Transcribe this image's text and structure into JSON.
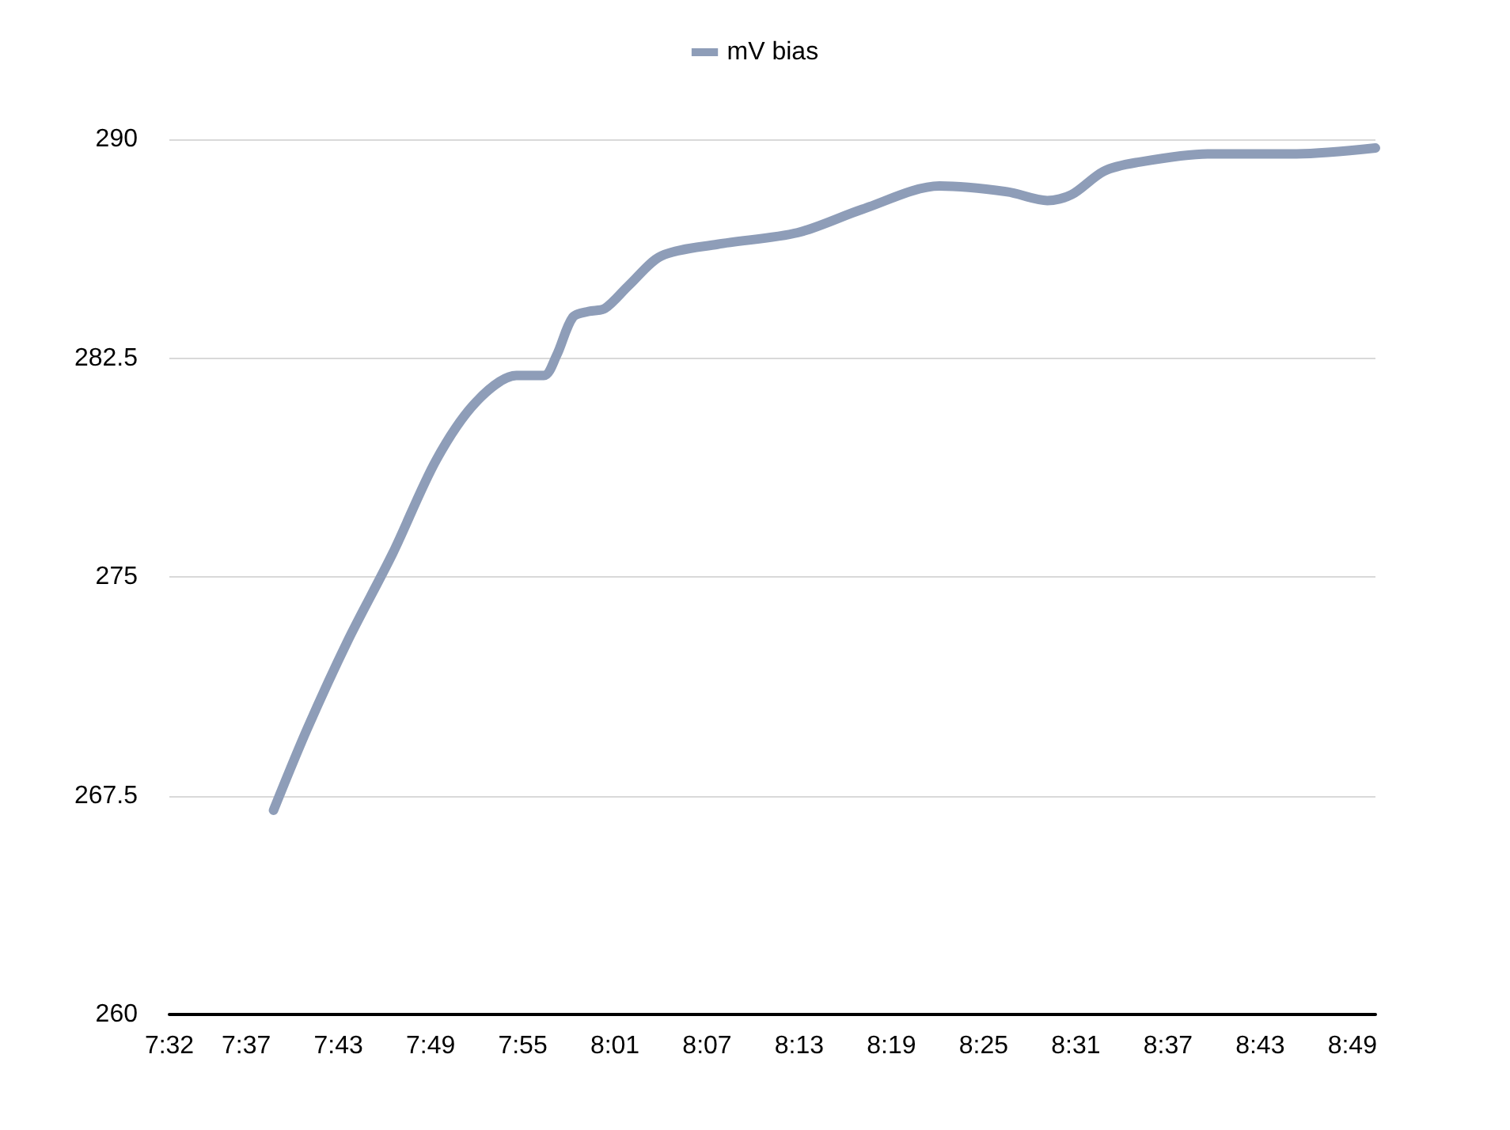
{
  "chart_data": {
    "type": "line",
    "legend": "top",
    "grid": "y",
    "marker": "none",
    "line_style": "solid",
    "x": [
      7.6463,
      7.683,
      7.7267,
      7.7755,
      7.8227,
      7.8662,
      7.9098,
      7.9395,
      7.9535,
      7.971,
      7.9883,
      8.0058,
      8.032,
      8.067,
      8.128,
      8.215,
      8.285,
      8.3688,
      8.4422,
      8.4858,
      8.512,
      8.5468,
      8.5818,
      8.6603,
      8.7563,
      8.8418
    ],
    "series": [
      {
        "name": "mV bias",
        "color": "#8e9db8",
        "values": [
          267.0,
          269.8,
          272.8,
          275.8,
          279.0,
          281.0,
          281.9,
          281.9,
          282.6,
          283.9,
          284.1,
          284.2,
          285.0,
          286.0,
          286.4,
          286.8,
          287.6,
          288.4,
          288.2,
          287.9,
          288.1,
          288.9,
          289.2,
          289.5,
          289.5,
          289.7
        ]
      }
    ],
    "xlim": [
      7.5333,
      8.8418
    ],
    "xticks": [
      {
        "value": 7.5333,
        "label": "7:32"
      },
      {
        "value": 7.6167,
        "label": "7:37"
      },
      {
        "value": 7.7167,
        "label": "7:43"
      },
      {
        "value": 7.8167,
        "label": "7:49"
      },
      {
        "value": 7.9167,
        "label": "7:55"
      },
      {
        "value": 8.0167,
        "label": "8:01"
      },
      {
        "value": 8.1167,
        "label": "8:07"
      },
      {
        "value": 8.2167,
        "label": "8:13"
      },
      {
        "value": 8.3167,
        "label": "8:19"
      },
      {
        "value": 8.4167,
        "label": "8:25"
      },
      {
        "value": 8.5167,
        "label": "8:31"
      },
      {
        "value": 8.6167,
        "label": "8:37"
      },
      {
        "value": 8.7167,
        "label": "8:43"
      },
      {
        "value": 8.8167,
        "label": "8:49"
      }
    ],
    "ylim": [
      260,
      290
    ],
    "yticks": [
      260,
      267.5,
      275,
      282.5,
      290
    ]
  }
}
